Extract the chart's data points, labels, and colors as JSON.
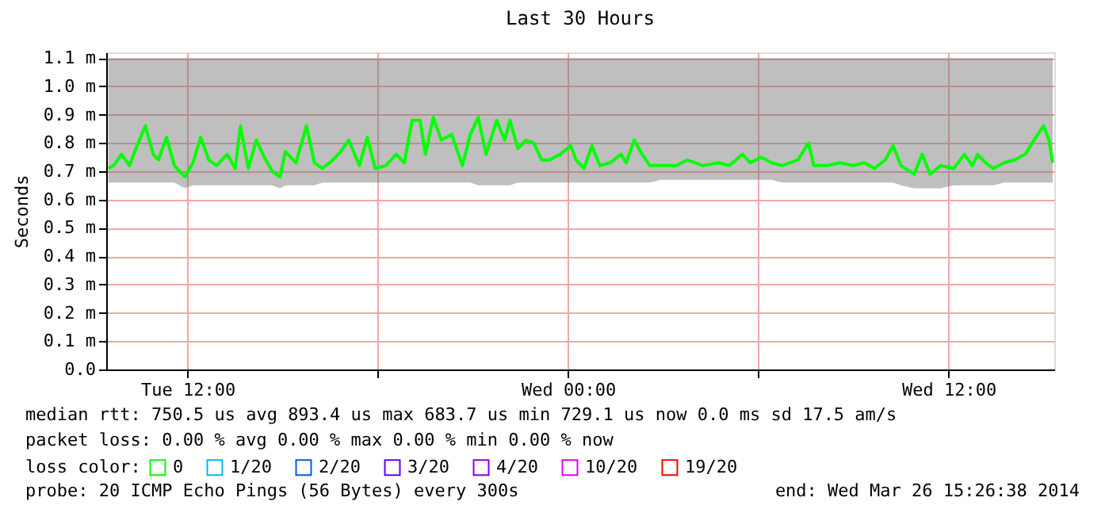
{
  "chart_data": {
    "type": "line",
    "title": "Last 30 Hours",
    "ylabel": "Seconds",
    "x": [
      "2014-03-25T09:30",
      "2014-03-25T09:40",
      "2014-03-25T09:55",
      "2014-03-25T10:10",
      "2014-03-25T10:20",
      "2014-03-25T10:40",
      "2014-03-25T10:55",
      "2014-03-25T11:05",
      "2014-03-25T11:20",
      "2014-03-25T11:35",
      "2014-03-25T11:55",
      "2014-03-25T12:10",
      "2014-03-25T12:25",
      "2014-03-25T12:40",
      "2014-03-25T12:55",
      "2014-03-25T13:15",
      "2014-03-25T13:30",
      "2014-03-25T13:40",
      "2014-03-25T13:55",
      "2014-03-25T14:10",
      "2014-03-25T14:25",
      "2014-03-25T14:40",
      "2014-03-25T14:55",
      "2014-03-25T15:05",
      "2014-03-25T15:25",
      "2014-03-25T15:45",
      "2014-03-25T16:00",
      "2014-03-25T16:15",
      "2014-03-25T16:35",
      "2014-03-25T16:50",
      "2014-03-25T17:05",
      "2014-03-25T17:25",
      "2014-03-25T17:40",
      "2014-03-25T17:55",
      "2014-03-25T18:15",
      "2014-03-25T18:35",
      "2014-03-25T18:50",
      "2014-03-25T19:05",
      "2014-03-25T19:20",
      "2014-03-25T19:30",
      "2014-03-25T19:45",
      "2014-03-25T20:00",
      "2014-03-25T20:20",
      "2014-03-25T20:40",
      "2014-03-25T20:55",
      "2014-03-25T21:10",
      "2014-03-25T21:25",
      "2014-03-25T21:45",
      "2014-03-25T22:00",
      "2014-03-25T22:10",
      "2014-03-25T22:25",
      "2014-03-25T22:40",
      "2014-03-25T22:55",
      "2014-03-25T23:10",
      "2014-03-25T23:25",
      "2014-03-25T23:45",
      "2014-03-26T00:05",
      "2014-03-26T00:15",
      "2014-03-26T00:30",
      "2014-03-26T00:45",
      "2014-03-26T01:00",
      "2014-03-26T01:20",
      "2014-03-26T01:40",
      "2014-03-26T01:50",
      "2014-03-26T02:05",
      "2014-03-26T02:20",
      "2014-03-26T02:35",
      "2014-03-26T02:55",
      "2014-03-26T03:25",
      "2014-03-26T03:45",
      "2014-03-26T04:15",
      "2014-03-26T04:45",
      "2014-03-26T05:05",
      "2014-03-26T05:30",
      "2014-03-26T05:45",
      "2014-03-26T06:05",
      "2014-03-26T06:25",
      "2014-03-26T06:45",
      "2014-03-26T07:15",
      "2014-03-26T07:35",
      "2014-03-26T07:45",
      "2014-03-26T08:10",
      "2014-03-26T08:35",
      "2014-03-26T09:00",
      "2014-03-26T09:20",
      "2014-03-26T09:40",
      "2014-03-26T10:00",
      "2014-03-26T10:15",
      "2014-03-26T10:30",
      "2014-03-26T10:55",
      "2014-03-26T11:10",
      "2014-03-26T11:25",
      "2014-03-26T11:45",
      "2014-03-26T12:10",
      "2014-03-26T12:30",
      "2014-03-26T12:45",
      "2014-03-26T12:55",
      "2014-03-26T13:10",
      "2014-03-26T13:25",
      "2014-03-26T13:45",
      "2014-03-26T14:05",
      "2014-03-26T14:25",
      "2014-03-26T14:45",
      "2014-03-26T15:00",
      "2014-03-26T15:10",
      "2014-03-26T15:17"
    ],
    "series": [
      {
        "name": "0",
        "color": "#00ff00",
        "values": [
          0.71,
          0.72,
          0.76,
          0.72,
          0.77,
          0.86,
          0.76,
          0.74,
          0.82,
          0.72,
          0.68,
          0.73,
          0.82,
          0.74,
          0.72,
          0.76,
          0.71,
          0.86,
          0.71,
          0.81,
          0.75,
          0.7,
          0.68,
          0.77,
          0.73,
          0.86,
          0.73,
          0.71,
          0.74,
          0.77,
          0.81,
          0.72,
          0.82,
          0.71,
          0.72,
          0.76,
          0.73,
          0.88,
          0.88,
          0.76,
          0.89,
          0.81,
          0.83,
          0.72,
          0.83,
          0.89,
          0.76,
          0.88,
          0.81,
          0.88,
          0.78,
          0.81,
          0.8,
          0.74,
          0.74,
          0.76,
          0.79,
          0.74,
          0.71,
          0.79,
          0.72,
          0.73,
          0.76,
          0.73,
          0.81,
          0.76,
          0.72,
          0.72,
          0.72,
          0.74,
          0.72,
          0.73,
          0.72,
          0.76,
          0.73,
          0.75,
          0.73,
          0.72,
          0.74,
          0.8,
          0.72,
          0.72,
          0.73,
          0.72,
          0.73,
          0.71,
          0.74,
          0.79,
          0.72,
          0.69,
          0.76,
          0.69,
          0.72,
          0.71,
          0.76,
          0.72,
          0.76,
          0.73,
          0.71,
          0.73,
          0.74,
          0.76,
          0.82,
          0.86,
          0.81,
          0.73
        ],
        "lower": [
          0.66,
          0.66,
          0.66,
          0.66,
          0.66,
          0.66,
          0.66,
          0.66,
          0.66,
          0.66,
          0.64,
          0.65,
          0.65,
          0.65,
          0.65,
          0.65,
          0.65,
          0.65,
          0.65,
          0.65,
          0.65,
          0.65,
          0.64,
          0.65,
          0.65,
          0.65,
          0.65,
          0.66,
          0.66,
          0.66,
          0.66,
          0.66,
          0.66,
          0.66,
          0.66,
          0.66,
          0.66,
          0.66,
          0.66,
          0.66,
          0.66,
          0.66,
          0.66,
          0.66,
          0.66,
          0.65,
          0.65,
          0.65,
          0.65,
          0.65,
          0.66,
          0.66,
          0.66,
          0.66,
          0.66,
          0.66,
          0.66,
          0.66,
          0.66,
          0.66,
          0.66,
          0.66,
          0.66,
          0.66,
          0.66,
          0.66,
          0.66,
          0.67,
          0.67,
          0.67,
          0.67,
          0.67,
          0.67,
          0.67,
          0.67,
          0.67,
          0.67,
          0.66,
          0.66,
          0.66,
          0.66,
          0.66,
          0.66,
          0.66,
          0.66,
          0.66,
          0.66,
          0.66,
          0.65,
          0.64,
          0.64,
          0.64,
          0.64,
          0.65,
          0.65,
          0.65,
          0.65,
          0.65,
          0.65,
          0.66,
          0.66,
          0.66,
          0.66,
          0.66,
          0.66,
          0.66
        ],
        "upper": [
          1.1,
          1.1,
          1.1,
          1.1,
          1.1,
          1.1,
          1.1,
          1.1,
          1.1,
          1.1,
          1.1,
          1.1,
          1.1,
          1.1,
          1.1,
          1.1,
          1.1,
          1.1,
          1.1,
          1.1,
          1.1,
          1.1,
          1.1,
          1.1,
          1.1,
          1.1,
          1.1,
          1.1,
          1.1,
          1.1,
          1.1,
          1.1,
          1.1,
          1.1,
          1.1,
          1.1,
          1.1,
          1.1,
          1.1,
          1.1,
          1.1,
          1.1,
          1.1,
          1.1,
          1.1,
          1.1,
          1.1,
          1.1,
          1.1,
          1.1,
          1.1,
          1.1,
          1.1,
          1.1,
          1.1,
          1.1,
          1.1,
          1.1,
          1.1,
          1.1,
          1.1,
          1.1,
          1.1,
          1.1,
          1.1,
          1.1,
          1.1,
          1.1,
          1.1,
          1.1,
          1.1,
          1.1,
          1.1,
          1.1,
          1.1,
          1.1,
          1.1,
          1.1,
          1.1,
          1.1,
          1.1,
          1.1,
          1.1,
          1.1,
          1.1,
          1.1,
          1.1,
          1.1,
          1.1,
          1.1,
          1.1,
          1.1,
          1.1,
          1.1,
          1.1,
          1.1,
          1.1,
          1.1,
          1.1,
          1.1,
          1.1,
          1.1,
          1.1,
          1.1,
          1.1,
          1.1
        ]
      },
      {
        "name": "1/20",
        "color": "#00b8ff",
        "values": [
          null,
          null,
          null,
          null,
          null,
          null,
          null,
          null,
          null,
          null,
          null,
          null,
          null,
          null,
          null,
          null,
          null,
          null,
          null,
          null,
          null,
          null,
          null,
          null,
          null,
          null,
          null,
          null,
          null,
          null,
          null,
          null,
          null,
          null,
          null,
          null,
          null,
          null,
          null,
          null,
          null,
          null,
          null,
          null,
          null,
          null,
          null,
          null,
          null,
          null,
          null,
          null,
          null,
          null,
          null,
          null,
          null,
          null,
          null,
          null,
          null,
          null,
          null,
          null,
          null,
          null,
          null,
          null,
          null,
          null,
          null,
          null,
          null,
          null,
          null,
          null,
          null,
          null,
          null,
          null,
          null,
          null,
          null,
          null,
          null,
          null,
          null,
          null,
          null,
          null,
          null,
          null,
          null,
          null,
          null,
          null,
          null,
          null,
          null,
          null,
          null,
          null,
          null,
          null,
          null,
          null
        ]
      },
      {
        "name": "2/20",
        "color": "#0059ff",
        "values": [
          null,
          null,
          null,
          null,
          null,
          null,
          null,
          null,
          null,
          null,
          null,
          null,
          null,
          null,
          null,
          null,
          null,
          null,
          null,
          null,
          null,
          null,
          null,
          null,
          null,
          null,
          null,
          null,
          null,
          null,
          null,
          null,
          null,
          null,
          null,
          null,
          null,
          null,
          null,
          null,
          null,
          null,
          null,
          null,
          null,
          null,
          null,
          null,
          null,
          null,
          null,
          null,
          null,
          null,
          null,
          null,
          null,
          null,
          null,
          null,
          null,
          null,
          null,
          null,
          null,
          null,
          null,
          null,
          null,
          null,
          null,
          null,
          null,
          null,
          null,
          null,
          null,
          null,
          null,
          null,
          null,
          null,
          null,
          null,
          null,
          null,
          null,
          null,
          null,
          null,
          null,
          null,
          null,
          null,
          null,
          null,
          null,
          null,
          null,
          null,
          null,
          null,
          null,
          null,
          null,
          null
        ]
      },
      {
        "name": "3/20",
        "color": "#5e00ff",
        "values": [
          null,
          null,
          null,
          null,
          null,
          null,
          null,
          null,
          null,
          null,
          null,
          null,
          null,
          null,
          null,
          null,
          null,
          null,
          null,
          null,
          null,
          null,
          null,
          null,
          null,
          null,
          null,
          null,
          null,
          null,
          null,
          null,
          null,
          null,
          null,
          null,
          null,
          null,
          null,
          null,
          null,
          null,
          null,
          null,
          null,
          null,
          null,
          null,
          null,
          null,
          null,
          null,
          null,
          null,
          null,
          null,
          null,
          null,
          null,
          null,
          null,
          null,
          null,
          null,
          null,
          null,
          null,
          null,
          null,
          null,
          null,
          null,
          null,
          null,
          null,
          null,
          null,
          null,
          null,
          null,
          null,
          null,
          null,
          null,
          null,
          null,
          null,
          null,
          null,
          null,
          null,
          null,
          null,
          null,
          null,
          null,
          null,
          null,
          null,
          null,
          null,
          null,
          null,
          null,
          null,
          null
        ]
      },
      {
        "name": "4/20",
        "color": "#7e00ff",
        "values": [
          null,
          null,
          null,
          null,
          null,
          null,
          null,
          null,
          null,
          null,
          null,
          null,
          null,
          null,
          null,
          null,
          null,
          null,
          null,
          null,
          null,
          null,
          null,
          null,
          null,
          null,
          null,
          null,
          null,
          null,
          null,
          null,
          null,
          null,
          null,
          null,
          null,
          null,
          null,
          null,
          null,
          null,
          null,
          null,
          null,
          null,
          null,
          null,
          null,
          null,
          null,
          null,
          null,
          null,
          null,
          null,
          null,
          null,
          null,
          null,
          null,
          null,
          null,
          null,
          null,
          null,
          null,
          null,
          null,
          null,
          null,
          null,
          null,
          null,
          null,
          null,
          null,
          null,
          null,
          null,
          null,
          null,
          null,
          null,
          null,
          null,
          null,
          null,
          null,
          null,
          null,
          null,
          null,
          null,
          null,
          null,
          null,
          null,
          null,
          null,
          null,
          null,
          null,
          null,
          null,
          null
        ]
      },
      {
        "name": "10/20",
        "color": "#dd00ff",
        "values": [
          null,
          null,
          null,
          null,
          null,
          null,
          null,
          null,
          null,
          null,
          null,
          null,
          null,
          null,
          null,
          null,
          null,
          null,
          null,
          null,
          null,
          null,
          null,
          null,
          null,
          null,
          null,
          null,
          null,
          null,
          null,
          null,
          null,
          null,
          null,
          null,
          null,
          null,
          null,
          null,
          null,
          null,
          null,
          null,
          null,
          null,
          null,
          null,
          null,
          null,
          null,
          null,
          null,
          null,
          null,
          null,
          null,
          null,
          null,
          null,
          null,
          null,
          null,
          null,
          null,
          null,
          null,
          null,
          null,
          null,
          null,
          null,
          null,
          null,
          null,
          null,
          null,
          null,
          null,
          null,
          null,
          null,
          null,
          null,
          null,
          null,
          null,
          null,
          null,
          null,
          null,
          null,
          null,
          null,
          null,
          null,
          null,
          null,
          null,
          null,
          null,
          null,
          null,
          null,
          null,
          null
        ]
      },
      {
        "name": "19/20",
        "color": "#ff0000",
        "values": [
          null,
          null,
          null,
          null,
          null,
          null,
          null,
          null,
          null,
          null,
          null,
          null,
          null,
          null,
          null,
          null,
          null,
          null,
          null,
          null,
          null,
          null,
          null,
          null,
          null,
          null,
          null,
          null,
          null,
          null,
          null,
          null,
          null,
          null,
          null,
          null,
          null,
          null,
          null,
          null,
          null,
          null,
          null,
          null,
          null,
          null,
          null,
          null,
          null,
          null,
          null,
          null,
          null,
          null,
          null,
          null,
          null,
          null,
          null,
          null,
          null,
          null,
          null,
          null,
          null,
          null,
          null,
          null,
          null,
          null,
          null,
          null,
          null,
          null,
          null,
          null,
          null,
          null,
          null,
          null,
          null,
          null,
          null,
          null,
          null,
          null,
          null,
          null,
          null,
          null,
          null,
          null,
          null,
          null,
          null,
          null,
          null,
          null,
          null,
          null,
          null,
          null,
          null,
          null,
          null,
          null
        ]
      }
    ],
    "legend_title": "loss color:",
    "legend": "bottom",
    "xlim": [
      "2014-03-25T09:26",
      "2014-03-26T15:20"
    ],
    "xticks": [
      {
        "value": "2014-03-25T12:00",
        "label": "Tue 12:00"
      },
      {
        "value": "2014-03-25T18:00",
        "label": null
      },
      {
        "value": "2014-03-26T00:00",
        "label": "Wed 00:00"
      },
      {
        "value": "2014-03-26T06:00",
        "label": null
      },
      {
        "value": "2014-03-26T12:00",
        "label": "Wed 12:00"
      }
    ],
    "ylim": [
      0,
      1.12
    ],
    "yticks": [
      {
        "value": 0,
        "label": "0.0"
      },
      {
        "value": 0.1,
        "label": "0.1 m"
      },
      {
        "value": 0.2,
        "label": "0.2 m"
      },
      {
        "value": 0.3,
        "label": "0.3 m"
      },
      {
        "value": 0.4,
        "label": "0.4 m"
      },
      {
        "value": 0.5,
        "label": "0.5 m"
      },
      {
        "value": 0.6,
        "label": "0.6 m"
      },
      {
        "value": 0.7,
        "label": "0.7 m"
      },
      {
        "value": 0.8,
        "label": "0.8 m"
      },
      {
        "value": 0.9,
        "label": "0.9 m"
      },
      {
        "value": 1.0,
        "label": "1.0 m"
      },
      {
        "value": 1.1,
        "label": "1.1 m"
      }
    ],
    "grid": true,
    "annotations": [
      "median rtt:  750.5 us avg  893.4 us max  683.7 us min  729.1 us now  0.0 ms sd  17.5   am/s",
      "packet loss: 0.00 % avg  0.00 % max  0.00 % min  0.00 % now",
      "probe:        20 ICMP Echo Pings (56 Bytes) every 300s",
      "end: Wed Mar 26 15:26:38 2014"
    ]
  }
}
